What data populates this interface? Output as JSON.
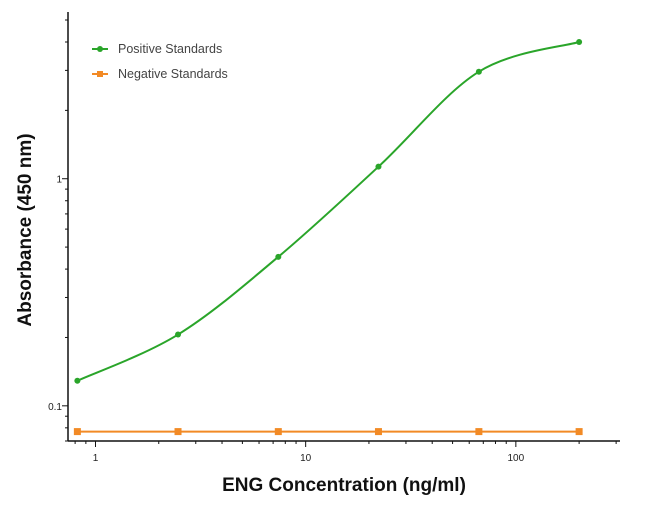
{
  "chart_data": {
    "type": "line",
    "title": "",
    "xlabel": "ENG Concentration (ng/ml)",
    "ylabel": "Absorbance (450 nm)",
    "xscale": "log",
    "yscale": "log",
    "xlim": [
      0.74,
      313
    ],
    "ylim": [
      0.07,
      5.0
    ],
    "x_ticks": [
      {
        "v": 1,
        "label": "1"
      },
      {
        "v": 10,
        "label": "10"
      },
      {
        "v": 100,
        "label": "100"
      }
    ],
    "y_ticks": [
      {
        "v": 0.1,
        "label": "0.1"
      },
      {
        "v": 1,
        "label": "1"
      }
    ],
    "grid": false,
    "legend_placement": "top-left",
    "series": [
      {
        "name": "Positive Standards",
        "color": "#2aa52a",
        "marker": "circle",
        "fit": "smooth-curve",
        "x": [
          0.82,
          2.47,
          7.41,
          22.2,
          66.7,
          200
        ],
        "y": [
          0.129,
          0.206,
          0.453,
          1.13,
          2.96,
          4.0
        ]
      },
      {
        "name": "Negative Standards",
        "color": "#f28a25",
        "marker": "square",
        "fit": "straight-line",
        "x": [
          0.82,
          2.47,
          7.41,
          22.2,
          66.7,
          200
        ],
        "y": [
          0.077,
          0.077,
          0.077,
          0.077,
          0.077,
          0.077
        ]
      }
    ]
  }
}
